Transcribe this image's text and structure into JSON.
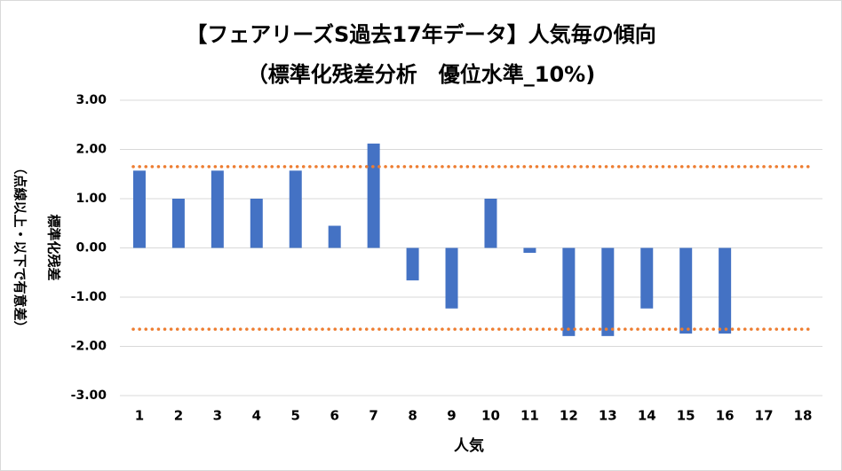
{
  "chart_data": {
    "type": "bar",
    "title": "【フェアリーズS過去17年データ】人気毎の傾向",
    "subtitle": "（標準化残差分析　優位水準_10%)",
    "x_label": "人気",
    "y_label": "標準化残差",
    "y_label_note": "（点線以上・以下で有意差）",
    "categories": [
      "1",
      "2",
      "3",
      "4",
      "5",
      "6",
      "7",
      "8",
      "9",
      "10",
      "11",
      "12",
      "13",
      "14",
      "15",
      "16",
      "17",
      "18"
    ],
    "values": [
      1.57,
      1.0,
      1.57,
      1.0,
      1.57,
      0.45,
      2.12,
      -0.66,
      -1.23,
      1.0,
      -0.1,
      -1.79,
      -1.79,
      -1.23,
      -1.74,
      -1.74,
      null,
      null
    ],
    "color": "#4472c4",
    "ref_lines": [
      1.65,
      -1.65
    ],
    "ref_color": "#ed7d31",
    "ylim": [
      -3,
      3
    ],
    "yticks": [
      {
        "value": 3,
        "label": "3.00"
      },
      {
        "value": 2,
        "label": "2.00"
      },
      {
        "value": 1,
        "label": "1.00"
      },
      {
        "value": 0,
        "label": "0.00"
      },
      {
        "value": -1,
        "label": "-1.00"
      },
      {
        "value": -2,
        "label": "-2.00"
      },
      {
        "value": -3,
        "label": "-3.00"
      }
    ],
    "grid": true
  }
}
